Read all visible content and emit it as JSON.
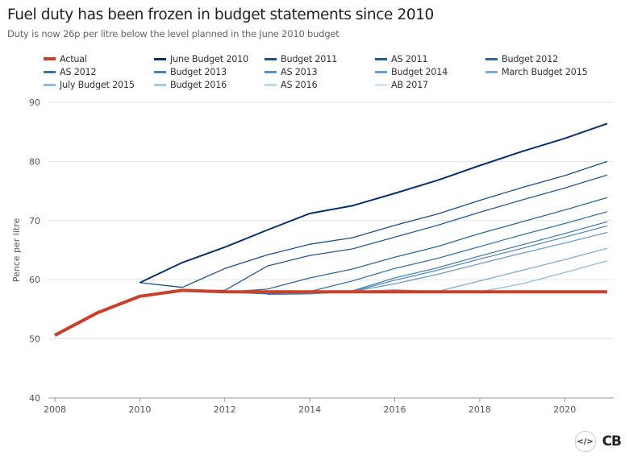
{
  "chart_data": {
    "type": "line",
    "title": "Fuel duty has been frozen in budget statements since 2010",
    "subtitle": "Duty is now 26p per litre below the level planned in the June 2010 budget",
    "xlabel": "",
    "ylabel": "Pence per litre",
    "x": [
      2008,
      2009,
      2010,
      2011,
      2012,
      2013,
      2014,
      2015,
      2016,
      2017,
      2018,
      2019,
      2020,
      2021
    ],
    "xticks": [
      2008,
      2010,
      2012,
      2014,
      2016,
      2018,
      2020
    ],
    "yticks": [
      40,
      50,
      60,
      70,
      80,
      90
    ],
    "xlim": [
      2008,
      2021
    ],
    "ylim": [
      40,
      90
    ],
    "grid": "horizontal",
    "legend_position": "top",
    "series": [
      {
        "name": "Actual",
        "color": "#c9412a",
        "values": [
          50.6,
          54.4,
          57.2,
          58.2,
          57.95,
          57.95,
          57.95,
          57.95,
          57.95,
          57.95,
          57.95,
          57.95,
          57.95,
          57.95
        ]
      },
      {
        "name": "June Budget 2010",
        "color": "#08306b",
        "values": [
          null,
          null,
          59.5,
          62.9,
          65.5,
          68.4,
          71.2,
          72.5,
          74.6,
          76.8,
          79.3,
          81.7,
          83.9,
          86.4
        ]
      },
      {
        "name": "Budget 2011",
        "color": "#1a4f86",
        "values": [
          null,
          null,
          59.5,
          58.7,
          61.9,
          64.2,
          66.0,
          67.1,
          69.2,
          71.1,
          73.4,
          75.6,
          77.6,
          80.0
        ]
      },
      {
        "name": "AS 2011",
        "color": "#245b8f",
        "values": [
          null,
          null,
          null,
          58.2,
          58.2,
          62.3,
          64.1,
          65.2,
          67.2,
          69.2,
          71.4,
          73.5,
          75.5,
          77.7
        ]
      },
      {
        "name": "Budget 2012",
        "color": "#2f6899",
        "values": [
          null,
          null,
          null,
          null,
          57.9,
          58.4,
          60.3,
          61.8,
          63.8,
          65.6,
          67.8,
          69.8,
          71.8,
          73.9
        ]
      },
      {
        "name": "AS 2012",
        "color": "#3b74a4",
        "values": [
          null,
          null,
          null,
          null,
          57.9,
          57.6,
          58.0,
          59.8,
          61.9,
          63.6,
          65.6,
          67.6,
          69.5,
          71.5
        ]
      },
      {
        "name": "Budget 2013",
        "color": "#4a81b0",
        "values": [
          null,
          null,
          null,
          null,
          null,
          57.6,
          57.7,
          58.1,
          60.3,
          62.0,
          64.0,
          65.9,
          67.8,
          69.8
        ]
      },
      {
        "name": "AS 2013",
        "color": "#5a8fbd",
        "values": [
          null,
          null,
          null,
          null,
          null,
          57.5,
          57.6,
          58.0,
          59.9,
          61.6,
          63.5,
          65.3,
          67.2,
          69.1
        ]
      },
      {
        "name": "Budget 2014",
        "color": "#6b9dc8",
        "values": [
          null,
          null,
          null,
          null,
          null,
          null,
          57.9,
          58.0,
          59.3,
          60.9,
          62.7,
          64.5,
          66.2,
          68.0
        ]
      },
      {
        "name": "March Budget 2015",
        "color": "#7eaad2",
        "values": [
          null,
          null,
          null,
          null,
          null,
          null,
          null,
          57.95,
          58.3,
          58.0,
          59.8,
          61.6,
          63.4,
          65.3
        ]
      },
      {
        "name": "July Budget 2015",
        "color": "#92b9dc",
        "values": [
          null,
          null,
          null,
          null,
          null,
          null,
          null,
          57.95,
          57.95,
          57.95,
          57.95,
          59.3,
          61.2,
          63.2
        ]
      },
      {
        "name": "Budget 2016",
        "color": "#a7c8e5",
        "values": [
          null,
          null,
          null,
          null,
          null,
          null,
          null,
          null,
          57.95,
          57.95,
          57.95,
          57.95,
          57.95,
          57.95
        ]
      },
      {
        "name": "AS 2016",
        "color": "#bcd7ee",
        "values": [
          null,
          null,
          null,
          null,
          null,
          null,
          null,
          null,
          57.95,
          57.95,
          57.95,
          57.95,
          57.95,
          57.95
        ]
      },
      {
        "name": "AB 2017",
        "color": "#d3e5f5",
        "values": [
          null,
          null,
          null,
          null,
          null,
          null,
          null,
          null,
          null,
          57.95,
          57.95,
          57.95,
          57.95,
          57.95
        ]
      }
    ]
  },
  "footer": {
    "embed_label": "</>",
    "logo": "CB"
  }
}
